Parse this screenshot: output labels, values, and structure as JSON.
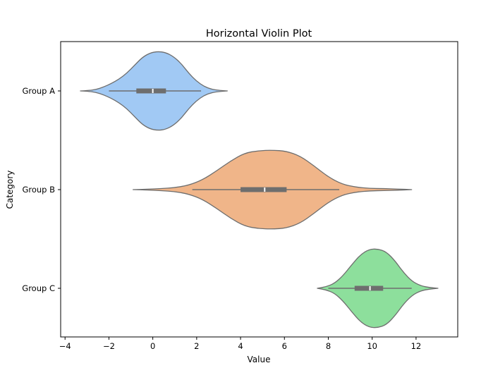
{
  "chart_data": {
    "type": "violin",
    "orientation": "horizontal",
    "title": "Horizontal Violin Plot",
    "xlabel": "Value",
    "ylabel": "Category",
    "xlim": [
      -4.2,
      13.9
    ],
    "xticks": [
      -4,
      -2,
      0,
      2,
      4,
      6,
      8,
      10,
      12
    ],
    "xtick_labels": [
      "−4",
      "−2",
      "0",
      "2",
      "4",
      "6",
      "8",
      "10",
      "12"
    ],
    "categories": [
      "Group A",
      "Group B",
      "Group C"
    ],
    "grid": false,
    "groups": [
      {
        "name": "Group A",
        "color": "#a1c9f4",
        "violin_range": [
          -3.3,
          3.4
        ],
        "whisker": [
          -2.0,
          2.2
        ],
        "q1": -0.75,
        "median": 0.0,
        "q3": 0.6,
        "density_half_widths": [
          0,
          0.004,
          0.014,
          0.04,
          0.075,
          0.12,
          0.18,
          0.26,
          0.34,
          0.385,
          0.4,
          0.39,
          0.35,
          0.28,
          0.18,
          0.1,
          0.045,
          0.016,
          0.005,
          0
        ]
      },
      {
        "name": "Group B",
        "color": "#f0b589",
        "violin_range": [
          -0.9,
          11.8
        ],
        "whisker": [
          1.8,
          8.5
        ],
        "q1": 4.0,
        "median": 5.1,
        "q3": 6.1,
        "density_half_widths": [
          0,
          0.004,
          0.01,
          0.02,
          0.045,
          0.1,
          0.19,
          0.29,
          0.37,
          0.395,
          0.4,
          0.39,
          0.34,
          0.24,
          0.13,
          0.055,
          0.025,
          0.012,
          0.01,
          0.006,
          0
        ]
      },
      {
        "name": "Group C",
        "color": "#8ddf9c",
        "violin_range": [
          7.5,
          13.0
        ],
        "whisker": [
          8.0,
          11.8
        ],
        "q1": 9.2,
        "median": 9.9,
        "q3": 10.5,
        "density_half_widths": [
          0,
          0.015,
          0.05,
          0.13,
          0.24,
          0.34,
          0.395,
          0.4,
          0.37,
          0.28,
          0.16,
          0.07,
          0.025,
          0.008,
          0
        ]
      }
    ]
  },
  "style": {
    "outline_color": "#6e6e6e",
    "box_color": "#6e6e6e",
    "median_color": "#ffffff",
    "axis_color": "#000000"
  }
}
